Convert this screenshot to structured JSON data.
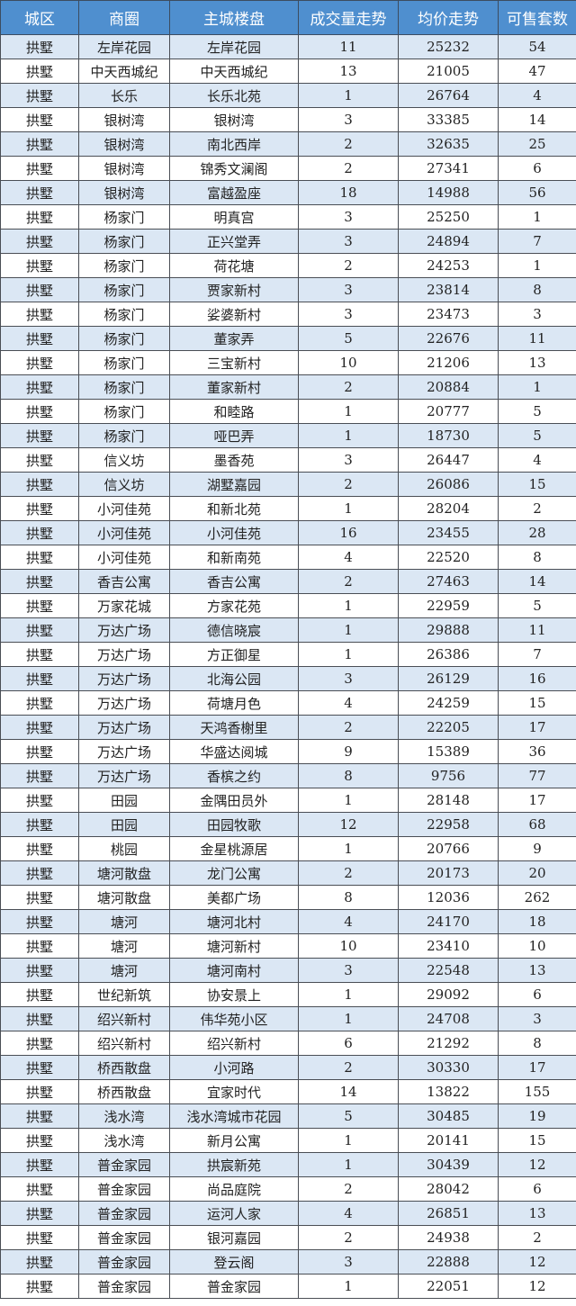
{
  "headers": [
    "城区",
    "商圈",
    "主城楼盘",
    "成交量走势",
    "均价走势",
    "可售套数"
  ],
  "colors": {
    "header_bg": "#4f8fcf",
    "row_alt_bg": "#dbe7f4",
    "row_bg": "#ffffff"
  },
  "rows": [
    [
      "拱墅",
      "左岸花园",
      "左岸花园",
      "11",
      "25232",
      "54"
    ],
    [
      "拱墅",
      "中天西城纪",
      "中天西城纪",
      "13",
      "21005",
      "47"
    ],
    [
      "拱墅",
      "长乐",
      "长乐北苑",
      "1",
      "26764",
      "4"
    ],
    [
      "拱墅",
      "银树湾",
      "银树湾",
      "3",
      "33385",
      "14"
    ],
    [
      "拱墅",
      "银树湾",
      "南北西岸",
      "2",
      "32635",
      "25"
    ],
    [
      "拱墅",
      "银树湾",
      "锦秀文澜阁",
      "2",
      "27341",
      "6"
    ],
    [
      "拱墅",
      "银树湾",
      "富越盈座",
      "18",
      "14988",
      "56"
    ],
    [
      "拱墅",
      "杨家门",
      "明真宫",
      "3",
      "25250",
      "1"
    ],
    [
      "拱墅",
      "杨家门",
      "正兴堂弄",
      "3",
      "24894",
      "7"
    ],
    [
      "拱墅",
      "杨家门",
      "荷花塘",
      "2",
      "24253",
      "1"
    ],
    [
      "拱墅",
      "杨家门",
      "贾家新村",
      "3",
      "23814",
      "8"
    ],
    [
      "拱墅",
      "杨家门",
      "娑婆新村",
      "3",
      "23473",
      "3"
    ],
    [
      "拱墅",
      "杨家门",
      "董家弄",
      "5",
      "22676",
      "11"
    ],
    [
      "拱墅",
      "杨家门",
      "三宝新村",
      "10",
      "21206",
      "13"
    ],
    [
      "拱墅",
      "杨家门",
      "董家新村",
      "2",
      "20884",
      "1"
    ],
    [
      "拱墅",
      "杨家门",
      "和睦路",
      "1",
      "20777",
      "5"
    ],
    [
      "拱墅",
      "杨家门",
      "哑巴弄",
      "1",
      "18730",
      "5"
    ],
    [
      "拱墅",
      "信义坊",
      "墨香苑",
      "3",
      "26447",
      "4"
    ],
    [
      "拱墅",
      "信义坊",
      "湖墅嘉园",
      "2",
      "26086",
      "15"
    ],
    [
      "拱墅",
      "小河佳苑",
      "和新北苑",
      "1",
      "28204",
      "2"
    ],
    [
      "拱墅",
      "小河佳苑",
      "小河佳苑",
      "16",
      "23455",
      "28"
    ],
    [
      "拱墅",
      "小河佳苑",
      "和新南苑",
      "4",
      "22520",
      "8"
    ],
    [
      "拱墅",
      "香吉公寓",
      "香吉公寓",
      "2",
      "27463",
      "14"
    ],
    [
      "拱墅",
      "万家花城",
      "方家花苑",
      "1",
      "22959",
      "5"
    ],
    [
      "拱墅",
      "万达广场",
      "德信晓宸",
      "1",
      "29888",
      "11"
    ],
    [
      "拱墅",
      "万达广场",
      "方正御星",
      "1",
      "26386",
      "7"
    ],
    [
      "拱墅",
      "万达广场",
      "北海公园",
      "3",
      "26129",
      "16"
    ],
    [
      "拱墅",
      "万达广场",
      "荷塘月色",
      "4",
      "24259",
      "15"
    ],
    [
      "拱墅",
      "万达广场",
      "天鸿香榭里",
      "2",
      "22205",
      "17"
    ],
    [
      "拱墅",
      "万达广场",
      "华盛达阅城",
      "9",
      "15389",
      "36"
    ],
    [
      "拱墅",
      "万达广场",
      "香槟之约",
      "8",
      "9756",
      "77"
    ],
    [
      "拱墅",
      "田园",
      "金隅田员外",
      "1",
      "28148",
      "17"
    ],
    [
      "拱墅",
      "田园",
      "田园牧歌",
      "12",
      "22958",
      "68"
    ],
    [
      "拱墅",
      "桃园",
      "金星桃源居",
      "1",
      "20766",
      "9"
    ],
    [
      "拱墅",
      "塘河散盘",
      "龙门公寓",
      "2",
      "20173",
      "20"
    ],
    [
      "拱墅",
      "塘河散盘",
      "美都广场",
      "8",
      "12036",
      "262"
    ],
    [
      "拱墅",
      "塘河",
      "塘河北村",
      "4",
      "24170",
      "18"
    ],
    [
      "拱墅",
      "塘河",
      "塘河新村",
      "10",
      "23410",
      "10"
    ],
    [
      "拱墅",
      "塘河",
      "塘河南村",
      "3",
      "22548",
      "13"
    ],
    [
      "拱墅",
      "世纪新筑",
      "协安景上",
      "1",
      "29092",
      "6"
    ],
    [
      "拱墅",
      "绍兴新村",
      "伟华苑小区",
      "1",
      "24708",
      "3"
    ],
    [
      "拱墅",
      "绍兴新村",
      "绍兴新村",
      "6",
      "21292",
      "8"
    ],
    [
      "拱墅",
      "桥西散盘",
      "小河路",
      "2",
      "30330",
      "17"
    ],
    [
      "拱墅",
      "桥西散盘",
      "宜家时代",
      "14",
      "13822",
      "155"
    ],
    [
      "拱墅",
      "浅水湾",
      "浅水湾城市花园",
      "5",
      "30485",
      "19"
    ],
    [
      "拱墅",
      "浅水湾",
      "新月公寓",
      "1",
      "20141",
      "15"
    ],
    [
      "拱墅",
      "普金家园",
      "拱宸新苑",
      "1",
      "30439",
      "12"
    ],
    [
      "拱墅",
      "普金家园",
      "尚品庭院",
      "2",
      "28042",
      "6"
    ],
    [
      "拱墅",
      "普金家园",
      "运河人家",
      "4",
      "26851",
      "13"
    ],
    [
      "拱墅",
      "普金家园",
      "银河嘉园",
      "2",
      "24938",
      "2"
    ],
    [
      "拱墅",
      "普金家园",
      "登云阁",
      "3",
      "22888",
      "12"
    ],
    [
      "拱墅",
      "普金家园",
      "普金家园",
      "1",
      "22051",
      "12"
    ]
  ]
}
